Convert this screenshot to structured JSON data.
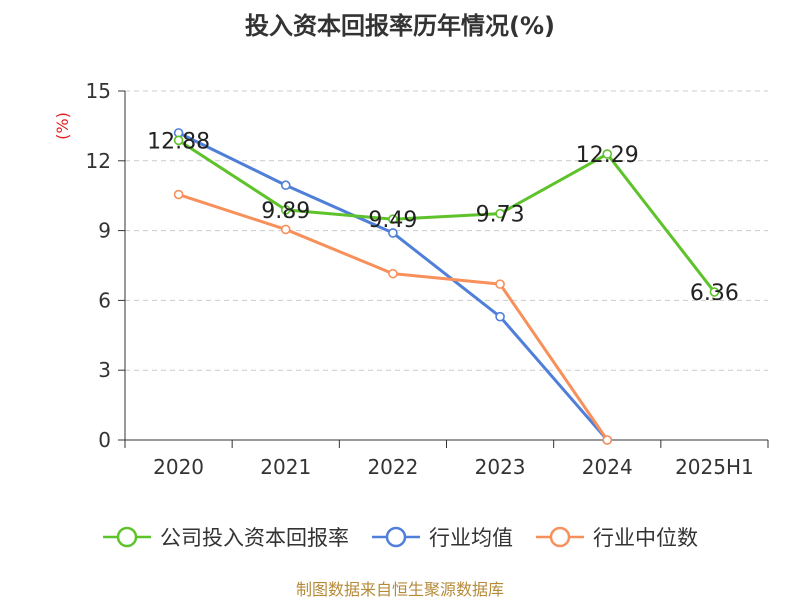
{
  "title": "投入资本回报率历年情况(%)",
  "source": "制图数据来自恒生聚源数据库",
  "chart_data": {
    "type": "line",
    "categories": [
      "2020",
      "2021",
      "2022",
      "2023",
      "2024",
      "2025H1"
    ],
    "ylabel": "(%)",
    "ylim": [
      0,
      15
    ],
    "yticks": [
      0,
      3,
      6,
      9,
      12,
      15
    ],
    "grid": true,
    "legend_position": "bottom",
    "series": [
      {
        "name": "公司投入资本回报率",
        "color": "#5ec22a",
        "values": [
          12.88,
          9.89,
          9.49,
          9.73,
          12.29,
          6.36
        ],
        "labels": [
          "12.88",
          "9.89",
          "9.49",
          "9.73",
          "12.29",
          "6.36"
        ]
      },
      {
        "name": "行业均值",
        "color": "#4f7fd9",
        "values": [
          13.2,
          10.95,
          8.9,
          5.3,
          0,
          null
        ]
      },
      {
        "name": "行业中位数",
        "color": "#f7905b",
        "values": [
          10.55,
          9.05,
          7.15,
          6.7,
          0,
          null
        ]
      }
    ]
  }
}
